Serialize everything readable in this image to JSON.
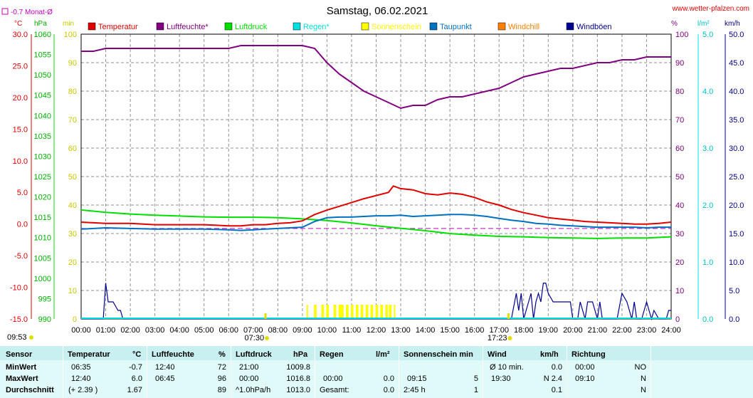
{
  "header": {
    "title": "Samstag, 06.02.2021",
    "site": "www.wetter-pfalzen.com",
    "monthly_avg": "-0.7 Monat-Ø",
    "unit_c": "°C",
    "unit_hpa": "hPa",
    "unit_min": "min",
    "unit_pct": "%",
    "unit_lm2": "l/m²",
    "unit_kmh": "km/h",
    "sunrise": "07:30",
    "sunset": "17:23",
    "time_left": "09:53"
  },
  "colors": {
    "temperature": "#e00000",
    "humidity": "#800080",
    "pressure": "#00e000",
    "rain": "#00e0e0",
    "sunshine": "#ffff00",
    "dewpoint": "#0070c0",
    "windchill": "#ff8000",
    "gusts": "#000090"
  },
  "legend": [
    {
      "label": "Temperatur",
      "color": "#e00000"
    },
    {
      "label": "Luftfeuchte*",
      "color": "#800080"
    },
    {
      "label": "Luftdruck",
      "color": "#00e000"
    },
    {
      "label": "Regen*",
      "color": "#00e0e0"
    },
    {
      "label": "Sonnenschein",
      "color": "#ffff00"
    },
    {
      "label": "Taupunkt",
      "color": "#0070c0"
    },
    {
      "label": "Windchill",
      "color": "#ff8000"
    },
    {
      "label": "Windböen",
      "color": "#000090"
    }
  ],
  "chart_data": {
    "type": "line",
    "title": "Samstag, 06.02.2021",
    "x_ticks": [
      "00:00",
      "01:00",
      "02:00",
      "03:00",
      "04:00",
      "05:00",
      "06:00",
      "07:00",
      "08:00",
      "09:00",
      "10:00",
      "11:00",
      "12:00",
      "13:00",
      "14:00",
      "15:00",
      "16:00",
      "17:00",
      "18:00",
      "19:00",
      "20:00",
      "21:00",
      "22:00",
      "23:00",
      "24:00"
    ],
    "axes": {
      "temperature": {
        "min": -15,
        "max": 30,
        "ticks": [
          "30.0",
          "25.0",
          "20.0",
          "15.0",
          "10.0",
          "5.0",
          "0.0",
          "-5.0",
          "-10.0",
          "-15.0"
        ]
      },
      "pressure": {
        "min": 990,
        "max": 1060,
        "ticks": [
          "1060",
          "1055",
          "1050",
          "1045",
          "1040",
          "1035",
          "1030",
          "1025",
          "1020",
          "1015",
          "1010",
          "1005",
          "1000",
          "995",
          "990"
        ]
      },
      "sunshine_min": {
        "min": 0,
        "max": 100,
        "ticks": [
          "100",
          "90",
          "80",
          "70",
          "60",
          "50",
          "40",
          "30",
          "20",
          "10",
          "0"
        ]
      },
      "humidity": {
        "min": 0,
        "max": 100,
        "ticks": [
          "100",
          "90",
          "80",
          "70",
          "60",
          "50",
          "40",
          "30",
          "20",
          "10",
          "0"
        ]
      },
      "rain": {
        "min": 0,
        "max": 5,
        "ticks": [
          "5.0",
          "4.0",
          "3.0",
          "2.0",
          "1.0",
          "0.0"
        ]
      },
      "wind": {
        "min": 0,
        "max": 50,
        "ticks": [
          "50.0",
          "45.0",
          "40.0",
          "35.0",
          "30.0",
          "25.0",
          "20.0",
          "15.0",
          "10.0",
          "5.0",
          "0.0"
        ]
      }
    },
    "monthly_avg_temp": -0.7,
    "series": [
      {
        "name": "Temperatur",
        "axis": "temperature",
        "x": [
          0,
          1,
          2,
          3,
          4,
          5,
          5.5,
          6,
          6.5,
          7,
          7.5,
          8,
          8.5,
          9,
          9.5,
          10,
          10.5,
          11,
          11.5,
          12,
          12.5,
          12.7,
          13,
          13.5,
          14,
          14.5,
          15,
          15.5,
          16,
          16.5,
          17,
          17.5,
          18,
          18.5,
          19,
          19.5,
          20,
          20.5,
          21,
          21.5,
          22,
          22.5,
          23,
          23.5,
          24
        ],
        "y": [
          0.3,
          0.1,
          0.1,
          -0.1,
          -0.1,
          -0.1,
          -0.2,
          -0.3,
          -0.3,
          -0.1,
          -0.1,
          0.1,
          0.2,
          0.5,
          1.5,
          2.2,
          2.8,
          3.4,
          4.0,
          4.5,
          5.0,
          6.0,
          5.6,
          5.4,
          4.8,
          4.6,
          4.9,
          4.7,
          4.2,
          3.5,
          3.0,
          2.3,
          1.8,
          1.4,
          1.0,
          0.8,
          0.6,
          0.4,
          0.3,
          0.2,
          0.1,
          0.0,
          0.0,
          0.1,
          0.3
        ]
      },
      {
        "name": "Luftfeuchte*",
        "axis": "humidity",
        "x": [
          0,
          0.5,
          1,
          2,
          3,
          4,
          5,
          6,
          6.5,
          7,
          7.5,
          8,
          8.5,
          9,
          9.5,
          10,
          10.5,
          11,
          11.5,
          12,
          12.5,
          13,
          13.5,
          14,
          14.5,
          15,
          15.5,
          16,
          16.5,
          17,
          17.5,
          18,
          18.5,
          19,
          19.5,
          20,
          20.5,
          21,
          21.5,
          22,
          22.5,
          23,
          23.5,
          24
        ],
        "y": [
          94,
          94,
          95,
          95,
          95,
          95,
          95,
          95,
          96,
          96,
          96,
          96,
          96,
          96,
          95,
          90,
          86,
          83,
          80,
          78,
          76,
          74,
          75,
          75,
          77,
          78,
          78,
          79,
          80,
          81,
          83,
          85,
          86,
          87,
          88,
          88,
          89,
          90,
          90,
          91,
          91,
          92,
          92,
          92
        ]
      },
      {
        "name": "Luftdruck",
        "axis": "pressure",
        "x": [
          0,
          1,
          2,
          3,
          4,
          5,
          6,
          7,
          8,
          9,
          10,
          11,
          12,
          13,
          14,
          15,
          16,
          17,
          18,
          19,
          20,
          21,
          22,
          23,
          24
        ],
        "y": [
          1016.8,
          1016.2,
          1015.8,
          1015.5,
          1015.3,
          1015.1,
          1015.0,
          1015.0,
          1014.9,
          1014.6,
          1014.2,
          1013.6,
          1012.9,
          1012.3,
          1011.7,
          1011.0,
          1010.6,
          1010.3,
          1010.2,
          1010.0,
          1009.9,
          1009.8,
          1009.9,
          1009.9,
          1010.2
        ]
      },
      {
        "name": "Taupunkt",
        "axis": "temperature",
        "x": [
          0,
          1,
          2,
          3,
          4,
          5,
          6,
          6.5,
          7,
          7.5,
          8,
          8.5,
          9,
          9.5,
          10,
          10.5,
          11,
          11.5,
          12,
          12.5,
          13,
          13.5,
          14,
          14.5,
          15,
          15.5,
          16,
          16.5,
          17,
          17.5,
          18,
          18.5,
          19,
          19.5,
          20,
          20.5,
          21,
          21.5,
          22,
          22.5,
          23,
          23.5,
          24
        ],
        "y": [
          -0.8,
          -0.6,
          -0.7,
          -0.8,
          -0.8,
          -0.8,
          -0.9,
          -1.0,
          -0.9,
          -0.8,
          -0.7,
          -0.6,
          -0.5,
          0.4,
          1.0,
          1.1,
          1.1,
          1.2,
          1.3,
          1.3,
          1.4,
          1.2,
          1.3,
          1.4,
          1.5,
          1.5,
          1.4,
          1.2,
          0.9,
          0.6,
          0.4,
          0.1,
          0.0,
          -0.2,
          -0.3,
          -0.4,
          -0.5,
          -0.5,
          -0.5,
          -0.5,
          -0.6,
          -0.5,
          -0.5
        ]
      },
      {
        "name": "Windböen",
        "axis": "wind",
        "x": [
          0,
          0.9,
          1.0,
          1.1,
          1.3,
          1.5,
          1.6,
          1.7,
          1.8,
          2.0,
          16.0,
          17.4,
          17.5,
          17.7,
          17.8,
          17.9,
          18.0,
          18.2,
          18.3,
          18.4,
          18.5,
          18.6,
          18.7,
          18.8,
          18.9,
          19.0,
          19.2,
          19.3,
          19.5,
          19.7,
          19.9,
          20.0,
          20.2,
          20.3,
          20.5,
          20.6,
          20.8,
          21.0,
          21.1,
          21.2,
          21.4,
          21.6,
          21.8,
          22.0,
          22.2,
          22.3,
          22.4,
          22.5,
          22.6,
          22.8,
          23.0,
          23.2,
          23.3,
          23.5,
          23.6,
          23.8,
          23.9,
          24
        ],
        "y": [
          0,
          0,
          6.3,
          3.0,
          3.0,
          1.5,
          1.5,
          0,
          0,
          0,
          0,
          0,
          0,
          4.5,
          1.5,
          4.5,
          0,
          3.0,
          4.5,
          0,
          3.0,
          4.5,
          3.0,
          6.3,
          6.3,
          4.5,
          3.0,
          3.0,
          3.0,
          3.0,
          3.0,
          0,
          0,
          3.0,
          0,
          3.0,
          3.0,
          0,
          3.0,
          0,
          0,
          0,
          0,
          4.5,
          3.0,
          1.5,
          0,
          3.0,
          0,
          0,
          3.0,
          0,
          1.5,
          0,
          0,
          0,
          1.5,
          1.5
        ]
      },
      {
        "name": "Sonnenschein",
        "axis": "sunshine_min",
        "x": [
          9.2,
          9.5,
          9.55,
          9.8,
          9.85,
          10.0,
          10.05,
          10.3,
          10.35,
          10.5,
          10.55,
          10.6,
          10.65,
          10.8,
          10.85,
          11.0,
          11.05,
          11.2,
          11.25,
          11.4,
          11.45,
          11.6,
          11.65,
          11.8,
          11.85,
          12.0,
          12.05,
          12.2,
          12.25,
          12.4,
          12.45,
          12.55,
          12.6,
          12.75
        ],
        "y": [
          5,
          5,
          5,
          5,
          5,
          5,
          5,
          5,
          5,
          5,
          5,
          5,
          5,
          5,
          5,
          5,
          5,
          5,
          5,
          5,
          5,
          5,
          5,
          5,
          5,
          5,
          5,
          5,
          5,
          5,
          5,
          5,
          5,
          5
        ]
      }
    ]
  },
  "stats": {
    "headers": {
      "sensor": "Sensor",
      "temp": "Temperatur",
      "temp_unit": "°C",
      "hum": "Luftfeuchte",
      "hum_unit": "%",
      "press": "Luftdruck",
      "press_unit": "hPa",
      "rain": "Regen",
      "rain_unit": "l/m²",
      "sun": "Sonnenschein min",
      "wind": "Wind",
      "wind_unit": "km/h",
      "dir": "Richtung"
    },
    "rows": [
      {
        "label": "MinWert",
        "temp_time": "06:35",
        "temp_val": "-0.7",
        "hum_time": "12:40",
        "hum_val": "72",
        "press_time": "21:00",
        "press_val": "1009.8",
        "rain_time": "",
        "rain_val": "",
        "sun_time": "",
        "sun_val": "",
        "wind_time": "Ø 10 min.",
        "wind_val": "0.0",
        "dir_time": "00:00",
        "dir_val": "NO"
      },
      {
        "label": "MaxWert",
        "temp_time": "12:40",
        "temp_val": "6.0",
        "hum_time": "06:45",
        "hum_val": "96",
        "press_time": "00:00",
        "press_val": "1016.8",
        "rain_time": "00:00",
        "rain_val": "0.0",
        "sun_time": "09:15",
        "sun_val": "5",
        "wind_time": "19:30",
        "wind_val": "N 2.4",
        "dir_time": "09:10",
        "dir_val": "N"
      },
      {
        "label": "Durchschnitt",
        "temp_time": "(+ 2.39 )",
        "temp_val": "1.67",
        "hum_time": "",
        "hum_val": "89",
        "press_time": "^1.0hPa/h",
        "press_val": "1013.0",
        "rain_time": "Gesamt:",
        "rain_val": "0.0",
        "sun_time": "2:45 h",
        "sun_val": "1",
        "wind_time": "",
        "wind_val": "0.1",
        "dir_time": "",
        "dir_val": "N"
      }
    ]
  }
}
